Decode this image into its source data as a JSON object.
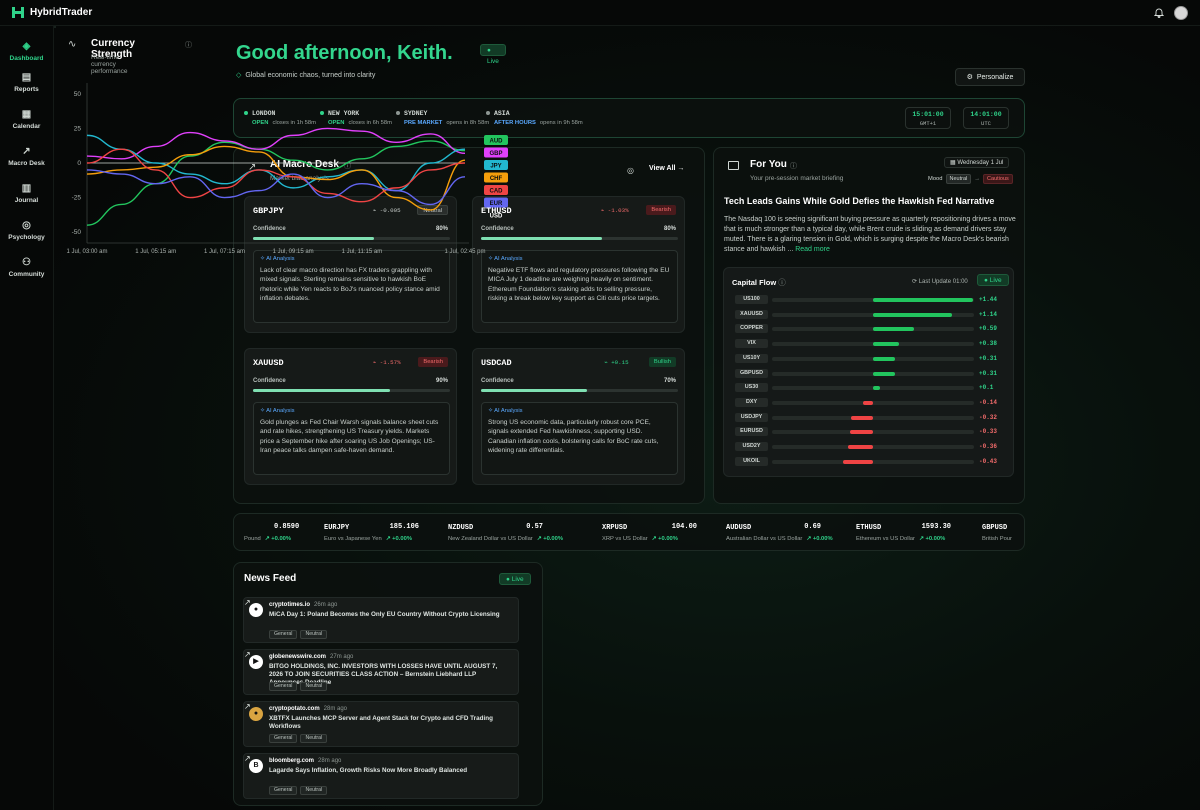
{
  "app": {
    "name": "HybridTrader"
  },
  "nav": [
    {
      "label": "Dashboard",
      "icon": "layers-icon",
      "glyph": "◈"
    },
    {
      "label": "Reports",
      "icon": "file-icon",
      "glyph": "▤"
    },
    {
      "label": "Calendar",
      "icon": "calendar-icon",
      "glyph": "▦"
    },
    {
      "label": "Macro Desk",
      "icon": "trend-icon",
      "glyph": "↗"
    },
    {
      "label": "Journal",
      "icon": "book-icon",
      "glyph": "▥"
    },
    {
      "label": "Psychology",
      "icon": "brain-icon",
      "glyph": "◎"
    },
    {
      "label": "Community",
      "icon": "users-icon",
      "glyph": "⚇"
    }
  ],
  "greeting": {
    "title": "Good afternoon, Keith.",
    "subtitle": "Global economic chaos, turned into clarity",
    "personalize": "Personalize"
  },
  "sessions": [
    {
      "name": "LONDON",
      "status": "OPEN",
      "status_color": "#2fd38a",
      "dot": "#2fd38a",
      "note": "closes in 1h 58m"
    },
    {
      "name": "NEW YORK",
      "status": "OPEN",
      "status_color": "#2fd38a",
      "dot": "#2fd38a",
      "note": "closes in 6h 58m"
    },
    {
      "name": "SYDNEY",
      "status": "PRE MARKET",
      "status_color": "#5aa9ff",
      "dot": "#8e9793",
      "note": "opens in 8h 58m"
    },
    {
      "name": "ASIA",
      "status": "AFTER HOURS",
      "status_color": "#5aa9ff",
      "dot": "#8e9793",
      "note": "opens in 9h 58m"
    }
  ],
  "clocks": [
    {
      "time": "15:01:00",
      "zone": "GMT+1"
    },
    {
      "time": "14:01:00",
      "zone": "UTC"
    }
  ],
  "macro": {
    "title": "AI Macro Desk",
    "subtitle": "Market bias analysis",
    "view_all": "View All",
    "confidence_label": "Confidence",
    "ai_label": "AI Analysis",
    "pairs": [
      {
        "symbol": "GBPJPY",
        "change": "-0.005",
        "change_color": "#c6ccc9",
        "bias": "Neutral",
        "bias_class": "neutral",
        "confidence": "80%",
        "confidence_value": 0.8,
        "analysis": "Lack of clear macro direction has FX traders grappling with mixed signals. Sterling remains sensitive to hawkish BoE rhetoric while Yen reacts to BoJ's nuanced policy stance amid inflation debates."
      },
      {
        "symbol": "ETHUSD",
        "change": "-1.03%",
        "change_color": "#f26b6b",
        "bias": "Bearish",
        "bias_class": "bearish",
        "confidence": "80%",
        "confidence_value": 0.8,
        "analysis": "Negative ETF flows and regulatory pressures following the EU MICA July 1 deadline are weighing heavily on sentiment. Ethereum Foundation's staking adds to selling pressure, risking a break below key support as Citi cuts price targets."
      },
      {
        "symbol": "XAUUSD",
        "change": "-1.57%",
        "change_color": "#f26b6b",
        "bias": "Bearish",
        "bias_class": "bearish",
        "confidence": "90%",
        "confidence_value": 0.9,
        "analysis": "Gold plunges as Fed Chair Warsh signals balance sheet cuts and rate hikes, strengthening US Treasury yields. Markets price a September hike after soaring US Job Openings; US-Iran peace talks dampen safe-haven demand."
      },
      {
        "symbol": "USDCAD",
        "change": "+0.15",
        "change_color": "#2fd38a",
        "bias": "Bullish",
        "bias_class": "bullish",
        "confidence": "70%",
        "confidence_value": 0.7,
        "analysis": "Strong US economic data, particularly robust core PCE, signals extended Fed hawkishness, supporting USD. Canadian inflation cools, bolstering calls for BoC rate cuts, widening rate differentials."
      }
    ]
  },
  "foryou": {
    "title": "For You",
    "subtitle": "Your pre-session market briefing",
    "date": "Wednesday 1 Jul",
    "mood_label": "Mood",
    "mood_from": "Neutral",
    "mood_to": "Cautious",
    "headline": "Tech Leads Gains While Gold Defies the Hawkish Fed Narrative",
    "story": "The Nasdaq 100 is seeing significant buying pressure as quarterly repositioning drives a move that is much stronger than a typical day, while Brent crude is sliding as demand drivers stay muted. There is a glaring tension in Gold, which is surging despite the Macro Desk's bearish stance and hawkish ...",
    "read_more": "Read more"
  },
  "capital_flow": {
    "title": "Capital Flow",
    "updated": "Last Update 01:00",
    "live": "Live",
    "rows": [
      {
        "label": "US100",
        "value": 1.44,
        "text": "+1.44"
      },
      {
        "label": "XAUUSD",
        "value": 1.14,
        "text": "+1.14"
      },
      {
        "label": "COPPER",
        "value": 0.59,
        "text": "+0.59"
      },
      {
        "label": "VIX",
        "value": 0.38,
        "text": "+0.38"
      },
      {
        "label": "US10Y",
        "value": 0.31,
        "text": "+0.31"
      },
      {
        "label": "GBPUSD",
        "value": 0.31,
        "text": "+0.31"
      },
      {
        "label": "US30",
        "value": 0.1,
        "text": "+0.1"
      },
      {
        "label": "DXY",
        "value": -0.14,
        "text": "-0.14"
      },
      {
        "label": "USDJPY",
        "value": -0.32,
        "text": "-0.32"
      },
      {
        "label": "EURUSD",
        "value": -0.33,
        "text": "-0.33"
      },
      {
        "label": "USD2Y",
        "value": -0.36,
        "text": "-0.36"
      },
      {
        "label": "UKOIL",
        "value": -0.43,
        "text": "-0.43"
      }
    ]
  },
  "ticker": [
    {
      "symbol": "",
      "price": "0.8590",
      "desc": "Pound",
      "change": "+0.00%"
    },
    {
      "symbol": "EURJPY",
      "price": "185.106",
      "desc": "Euro vs Japanese Yen",
      "change": "+0.00%"
    },
    {
      "symbol": "NZDUSD",
      "price": "0.57",
      "desc": "New Zealand Dollar vs US Dollar",
      "change": "+0.00%"
    },
    {
      "symbol": "XRPUSD",
      "price": "104.00",
      "desc": "XRP vs US Dollar",
      "change": "+0.00%"
    },
    {
      "symbol": "AUDUSD",
      "price": "0.69",
      "desc": "Australian Dollar vs US Dollar",
      "change": "+0.00%"
    },
    {
      "symbol": "ETHUSD",
      "price": "1593.30",
      "desc": "Ethereum vs US Dollar",
      "change": "+0.00%"
    },
    {
      "symbol": "GBPUSD",
      "price": "",
      "desc": "British Pour",
      "change": ""
    }
  ],
  "news": {
    "title": "News Feed",
    "live": "Live",
    "items": [
      {
        "source": "cryptotimes.io",
        "ago": "26m ago",
        "title": "MiCA Day 1: Poland Becomes the Only EU Country Without Crypto Licensing",
        "tags": [
          "General",
          "Neutral"
        ],
        "logo": "ct"
      },
      {
        "source": "globenewswire.com",
        "ago": "27m ago",
        "title": "BITGO HOLDINGS, INC. INVESTORS WITH LOSSES HAVE UNTIL AUGUST 7, 2026 TO JOIN SECURITIES CLASS ACTION – Bernstein Liebhard LLP Announces Deadline",
        "tags": [
          "General",
          "Neutral"
        ],
        "logo": "▶"
      },
      {
        "source": "cryptopotato.com",
        "ago": "28m ago",
        "title": "XBTFX Launches MCP Server and Agent Stack for Crypto and CFD Trading Workflows",
        "tags": [
          "General",
          "Neutral"
        ],
        "logo": "cp"
      },
      {
        "source": "bloomberg.com",
        "ago": "28m ago",
        "title": "Lagarde Says Inflation, Growth Risks Now More Broadly Balanced",
        "tags": [
          "General",
          "Neutral"
        ],
        "logo": "B"
      }
    ]
  },
  "strength": {
    "title": "Currency Strength",
    "subtitle": "Real-time currency performance",
    "live": "Live"
  },
  "chart_data": {
    "type": "line",
    "title": "Currency Strength",
    "x": [
      "1 Jul, 03:00 am",
      "1 Jul, 04:07 am",
      "1 Jul, 05:15 am",
      "1 Jul, 06:07 am",
      "1 Jul, 07:15 am",
      "1 Jul, 08:15 am",
      "1 Jul, 09:15 am",
      "1 Jul, 10:15 am",
      "1 Jul, 11:15 am",
      "1 Jul, 12:15 pm",
      "1 Jul, 01:15 pm",
      "1 Jul, 02:45 pm"
    ],
    "xticks": [
      "1 Jul, 03:00 am",
      "1 Jul, 05:15 am",
      "1 Jul, 07:15 am",
      "1 Jul, 09:15 am",
      "1 Jul, 11:15 am",
      "1 Jul, 02:45 pm"
    ],
    "yticks": [
      50,
      25,
      0,
      -25,
      -50
    ],
    "ylim": [
      -55,
      55
    ],
    "series": [
      {
        "name": "AUD",
        "color": "#22c55e",
        "values": [
          -45,
          -30,
          -15,
          5,
          15,
          10,
          2,
          -5,
          3,
          12,
          16,
          9
        ]
      },
      {
        "name": "GBP",
        "color": "#e040fb",
        "values": [
          5,
          3,
          12,
          22,
          16,
          10,
          20,
          25,
          23,
          15,
          21,
          7
        ]
      },
      {
        "name": "JPY",
        "color": "#22b8cf",
        "values": [
          20,
          10,
          0,
          -8,
          -15,
          -5,
          -18,
          -10,
          -5,
          -20,
          0,
          10
        ]
      },
      {
        "name": "CHF",
        "color": "#f59e0b",
        "values": [
          -8,
          -5,
          -3,
          6,
          12,
          8,
          -10,
          -12,
          -5,
          -25,
          -34,
          2
        ]
      },
      {
        "name": "CAD",
        "color": "#ef4444",
        "values": [
          0,
          10,
          -5,
          -25,
          -18,
          -5,
          -10,
          -22,
          -28,
          -18,
          -5,
          0
        ]
      },
      {
        "name": "EUR",
        "color": "#6366f1",
        "values": [
          -5,
          -8,
          -15,
          -10,
          -25,
          -20,
          -8,
          -25,
          -15,
          -20,
          -30,
          -10
        ]
      },
      {
        "name": "USD",
        "color": "#ffffff",
        "values": [
          0,
          0,
          0,
          0,
          0,
          0,
          0,
          0,
          0,
          0,
          0,
          0
        ]
      }
    ]
  }
}
